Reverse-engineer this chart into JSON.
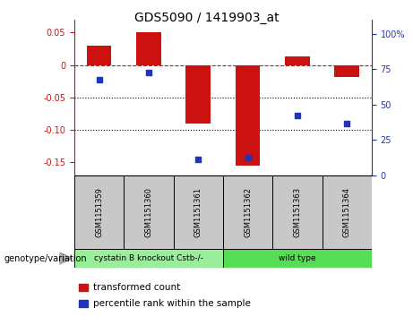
{
  "title": "GDS5090 / 1419903_at",
  "samples": [
    "GSM1151359",
    "GSM1151360",
    "GSM1151361",
    "GSM1151362",
    "GSM1151363",
    "GSM1151364"
  ],
  "bar_values": [
    0.03,
    0.05,
    -0.09,
    -0.155,
    0.013,
    -0.018
  ],
  "scatter_values_pct": [
    67.5,
    72.5,
    11.5,
    12.5,
    42.0,
    36.5
  ],
  "bar_color": "#cc1111",
  "scatter_color": "#2233bb",
  "ylim_left": [
    -0.17,
    0.07
  ],
  "ylim_right": [
    0,
    110
  ],
  "yticks_left": [
    0.05,
    0.0,
    -0.05,
    -0.1,
    -0.15
  ],
  "ytick_labels_left": [
    "0.05",
    "0",
    "-0.05",
    "-0.10",
    "-0.15"
  ],
  "yticks_right": [
    0,
    25,
    50,
    75,
    100
  ],
  "ytick_labels_right": [
    "0",
    "25",
    "50",
    "75",
    "100%"
  ],
  "groups": [
    {
      "label": "cystatin B knockout Cstb-/-",
      "indices": [
        0,
        1,
        2
      ],
      "color": "#99ee99"
    },
    {
      "label": "wild type",
      "indices": [
        3,
        4,
        5
      ],
      "color": "#55dd55"
    }
  ],
  "genotype_label": "genotype/variation",
  "legend_bar_label": "transformed count",
  "legend_scatter_label": "percentile rank within the sample",
  "hline_y": 0.0,
  "dotted_lines": [
    -0.05,
    -0.1
  ],
  "bar_width": 0.5,
  "background_color": "#ffffff",
  "group_box_color": "#c8c8c8",
  "scatter_marker": "s",
  "scatter_size": 18
}
